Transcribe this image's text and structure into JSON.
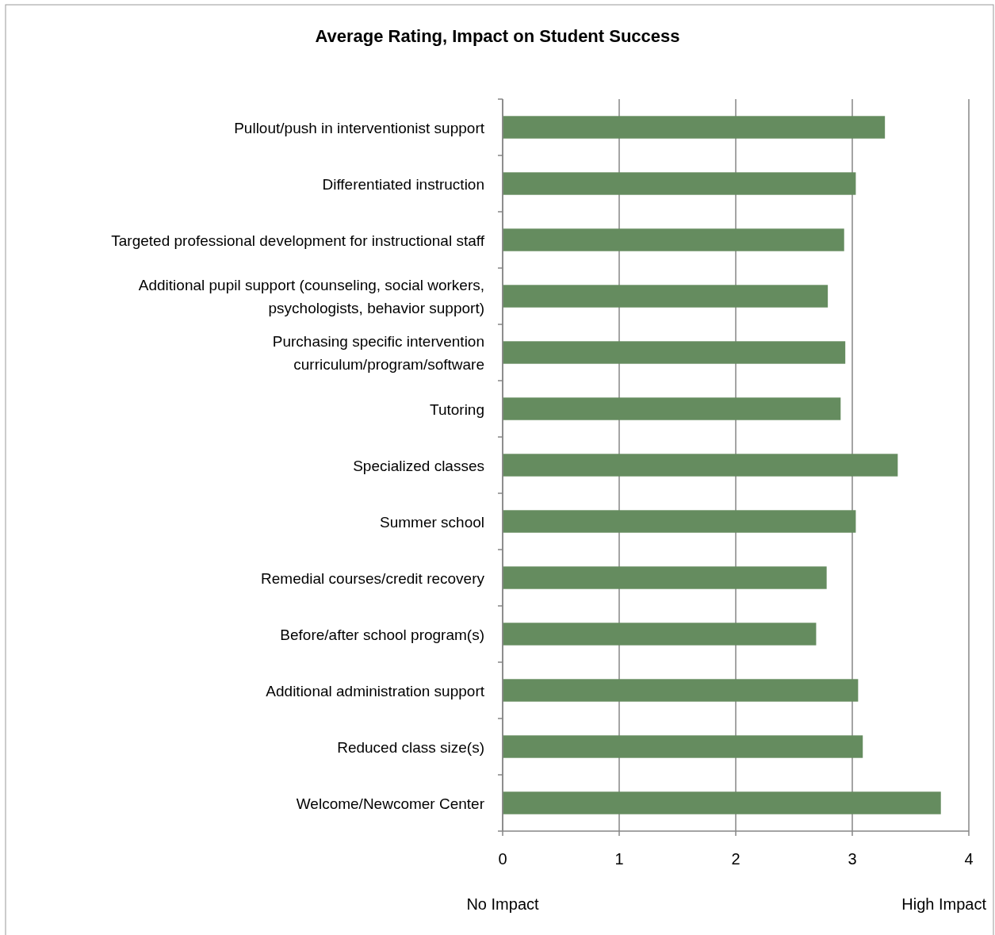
{
  "chart_data": {
    "type": "bar",
    "orientation": "horizontal",
    "title": "Average Rating, Impact on Student Success",
    "categories": [
      "Pullout/push in interventionist support",
      "Differentiated instruction",
      "Targeted professional development for instructional staff",
      "Additional pupil support (counseling, social workers, psychologists, behavior support)",
      "Purchasing specific intervention curriculum/program/software",
      "Tutoring",
      "Specialized classes",
      "Summer school",
      "Remedial courses/credit recovery",
      "Before/after school program(s)",
      "Additional administration support",
      "Reduced class size(s)",
      "Welcome/Newcomer Center"
    ],
    "values": [
      3.28,
      3.03,
      2.93,
      2.79,
      2.94,
      2.9,
      3.39,
      3.03,
      2.78,
      2.69,
      3.05,
      3.09,
      3.76
    ],
    "color": "#658c5f",
    "xlim": [
      0,
      4
    ],
    "xticks": [
      0,
      1,
      2,
      3,
      4
    ],
    "grid": "x",
    "annotations": [
      "No Impact",
      "High Impact"
    ]
  }
}
